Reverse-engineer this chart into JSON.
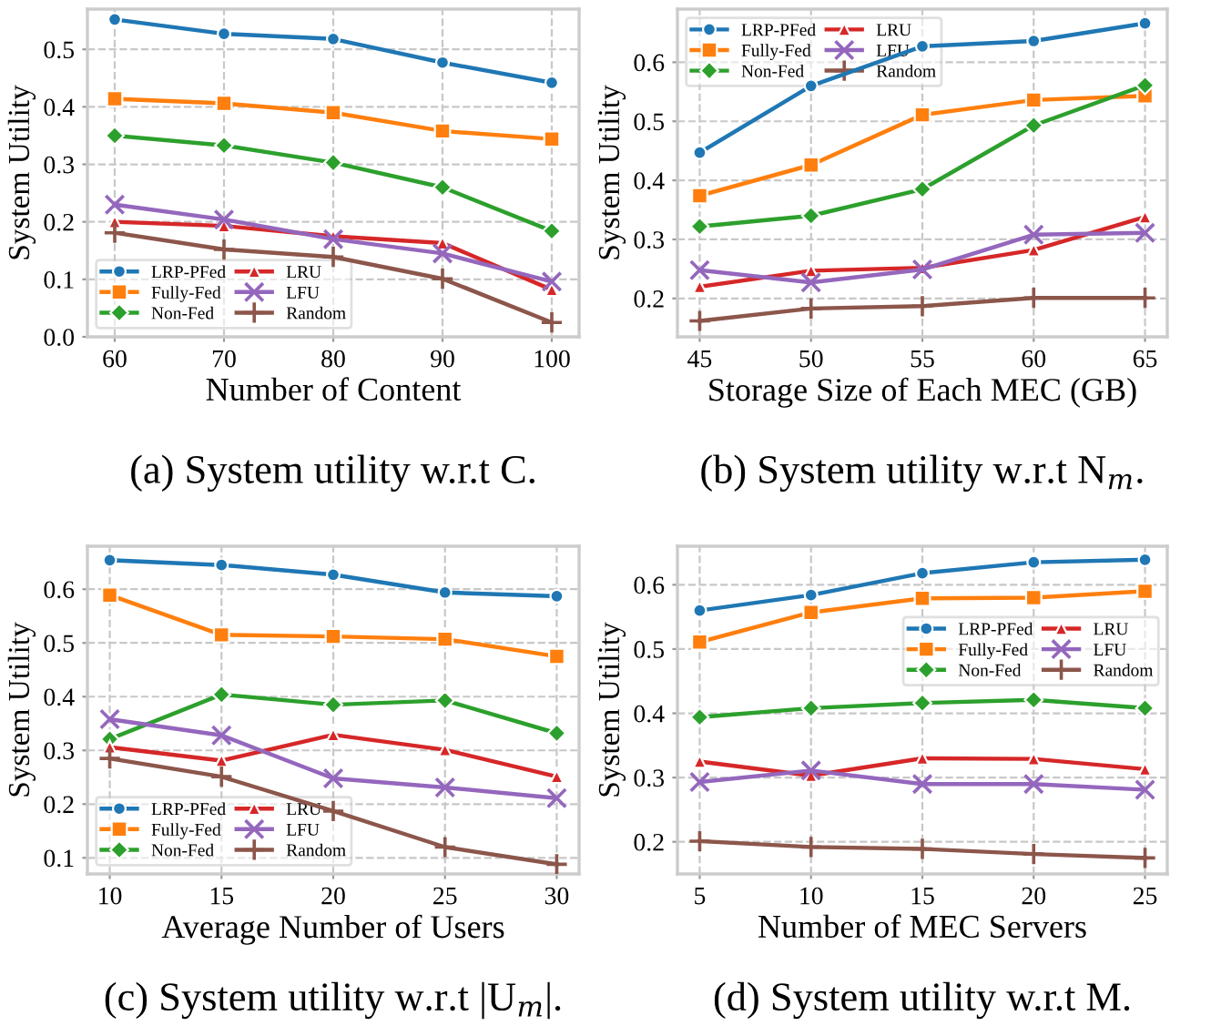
{
  "chart_data": [
    {
      "type": "line",
      "title": "(a) System utility w.r.t C.",
      "xlabel": "Number of Content",
      "ylabel": "System Utility",
      "x": [
        60,
        70,
        80,
        90,
        100
      ],
      "xlim": [
        57.5,
        102.5
      ],
      "xticks": [
        60,
        70,
        80,
        90,
        100
      ],
      "ylim": [
        0,
        0.57
      ],
      "yticks": [
        {
          "value": 0,
          "label": "0.0"
        },
        0.1,
        0.2,
        0.3,
        0.4,
        0.5
      ],
      "grid": true,
      "legend": "bottom left",
      "line_style": "solid",
      "series": [
        {
          "name": "LRP-PFed",
          "color": "#1f77b4",
          "marker": "circle",
          "values": [
            0.552,
            0.527,
            0.518,
            0.477,
            0.442
          ]
        },
        {
          "name": "Fully-Fed",
          "color": "#ff7f0e",
          "marker": "square",
          "values": [
            0.414,
            0.406,
            0.39,
            0.358,
            0.344
          ]
        },
        {
          "name": "Non-Fed",
          "color": "#2ca02c",
          "marker": "diamond",
          "values": [
            0.35,
            0.333,
            0.303,
            0.26,
            0.184
          ]
        },
        {
          "name": "LRU",
          "color": "#d62728",
          "marker": "triangle",
          "values": [
            0.2,
            0.193,
            0.175,
            0.163,
            0.082
          ]
        },
        {
          "name": "LFU",
          "color": "#9467bd",
          "marker": "cross",
          "values": [
            0.23,
            0.204,
            0.17,
            0.145,
            0.096
          ]
        },
        {
          "name": "Random",
          "color": "#8c564b",
          "marker": "plus",
          "values": [
            0.181,
            0.152,
            0.139,
            0.101,
            0.025
          ]
        }
      ]
    },
    {
      "type": "line",
      "title": "(b) System utility w.r.t N$_{m}$.",
      "xlabel": "Storage Size of Each MEC (GB)",
      "ylabel": "System Utility",
      "x": [
        45,
        50,
        55,
        60,
        65
      ],
      "xlim": [
        44,
        66
      ],
      "xticks": [
        45,
        50,
        55,
        60,
        65
      ],
      "ylim": [
        0.135,
        0.69
      ],
      "yticks": [
        0.2,
        0.3,
        0.4,
        0.5,
        0.6
      ],
      "grid": true,
      "legend": "top left",
      "line_style": "solid",
      "series": [
        {
          "name": "LRP-PFed",
          "color": "#1f77b4",
          "marker": "circle",
          "values": [
            0.447,
            0.56,
            0.627,
            0.636,
            0.666
          ]
        },
        {
          "name": "Fully-Fed",
          "color": "#ff7f0e",
          "marker": "square",
          "values": [
            0.374,
            0.426,
            0.511,
            0.536,
            0.543
          ]
        },
        {
          "name": "Non-Fed",
          "color": "#2ca02c",
          "marker": "diamond",
          "values": [
            0.322,
            0.34,
            0.385,
            0.493,
            0.561
          ]
        },
        {
          "name": "LRU",
          "color": "#d62728",
          "marker": "triangle",
          "values": [
            0.22,
            0.247,
            0.252,
            0.282,
            0.338
          ]
        },
        {
          "name": "LFU",
          "color": "#9467bd",
          "marker": "cross",
          "values": [
            0.248,
            0.227,
            0.249,
            0.308,
            0.311
          ]
        },
        {
          "name": "Random",
          "color": "#8c564b",
          "marker": "plus",
          "values": [
            0.162,
            0.183,
            0.187,
            0.201,
            0.201
          ]
        }
      ]
    },
    {
      "type": "line",
      "title": "(c) System utility w.r.t |U$_{m}$|.",
      "xlabel": "Average Number of Users",
      "ylabel": "System Utility",
      "x": [
        10,
        15,
        20,
        25,
        30
      ],
      "xlim": [
        9,
        31
      ],
      "xticks": [
        10,
        15,
        20,
        25,
        30
      ],
      "ylim": [
        0.07,
        0.68
      ],
      "yticks": [
        0.1,
        0.2,
        0.3,
        0.4,
        0.5,
        0.6
      ],
      "grid": true,
      "legend": "bottom left",
      "line_style": "solid",
      "series": [
        {
          "name": "LRP-PFed",
          "color": "#1f77b4",
          "marker": "circle",
          "values": [
            0.654,
            0.645,
            0.627,
            0.594,
            0.587
          ]
        },
        {
          "name": "Fully-Fed",
          "color": "#ff7f0e",
          "marker": "square",
          "values": [
            0.589,
            0.515,
            0.512,
            0.507,
            0.475
          ]
        },
        {
          "name": "Non-Fed",
          "color": "#2ca02c",
          "marker": "diamond",
          "values": [
            0.321,
            0.404,
            0.385,
            0.393,
            0.332
          ]
        },
        {
          "name": "LRU",
          "color": "#d62728",
          "marker": "triangle",
          "values": [
            0.306,
            0.281,
            0.329,
            0.301,
            0.251
          ]
        },
        {
          "name": "LFU",
          "color": "#9467bd",
          "marker": "cross",
          "values": [
            0.358,
            0.328,
            0.248,
            0.231,
            0.211
          ]
        },
        {
          "name": "Random",
          "color": "#8c564b",
          "marker": "plus",
          "values": [
            0.285,
            0.251,
            0.187,
            0.12,
            0.088
          ]
        }
      ]
    },
    {
      "type": "line",
      "title": "(d) System utility w.r.t M.",
      "xlabel": "Number of MEC Servers",
      "ylabel": "System Utility",
      "x": [
        5,
        10,
        15,
        20,
        25
      ],
      "xlim": [
        4,
        26
      ],
      "xticks": [
        5,
        10,
        15,
        20,
        25
      ],
      "ylim": [
        0.15,
        0.66
      ],
      "yticks": [
        0.2,
        0.3,
        0.4,
        0.5,
        0.6
      ],
      "grid": true,
      "legend": "right",
      "line_style": "solid",
      "series": [
        {
          "name": "LRP-PFed",
          "color": "#1f77b4",
          "marker": "circle",
          "values": [
            0.56,
            0.584,
            0.618,
            0.635,
            0.639
          ]
        },
        {
          "name": "Fully-Fed",
          "color": "#ff7f0e",
          "marker": "square",
          "values": [
            0.511,
            0.557,
            0.579,
            0.58,
            0.59
          ]
        },
        {
          "name": "Non-Fed",
          "color": "#2ca02c",
          "marker": "diamond",
          "values": [
            0.394,
            0.408,
            0.416,
            0.421,
            0.408
          ]
        },
        {
          "name": "LRU",
          "color": "#d62728",
          "marker": "triangle",
          "values": [
            0.325,
            0.303,
            0.33,
            0.329,
            0.313
          ]
        },
        {
          "name": "LFU",
          "color": "#9467bd",
          "marker": "cross",
          "values": [
            0.293,
            0.311,
            0.29,
            0.29,
            0.281
          ]
        },
        {
          "name": "Random",
          "color": "#8c564b",
          "marker": "plus",
          "values": [
            0.201,
            0.192,
            0.189,
            0.181,
            0.175
          ]
        }
      ]
    }
  ]
}
